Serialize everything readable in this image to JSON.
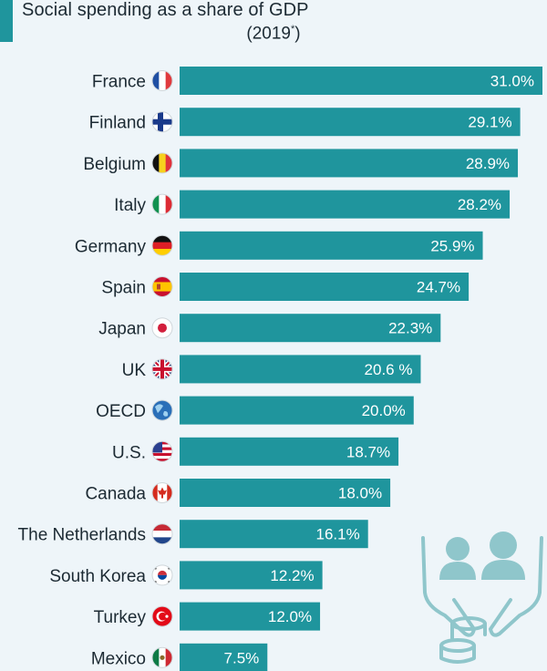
{
  "header": {
    "title": "Social spending as a share of GDP",
    "subtitle": "(2019",
    "subtitle_sup": "*",
    "subtitle_end": ")"
  },
  "colors": {
    "bar": "#1f959d",
    "accent": "#1f959d",
    "decoration": "#8fc6cb"
  },
  "chart_data": {
    "type": "bar",
    "orientation": "horizontal",
    "title": "Social spending as a share of GDP",
    "subtitle": "(2019*)",
    "xlim": [
      0,
      31
    ],
    "unit": "%",
    "categories": [
      "France",
      "Finland",
      "Belgium",
      "Italy",
      "Germany",
      "Spain",
      "Japan",
      "UK",
      "OECD",
      "U.S.",
      "Canada",
      "The Netherlands",
      "South Korea",
      "Turkey",
      "Mexico"
    ],
    "values": [
      31.0,
      29.1,
      28.9,
      28.2,
      25.9,
      24.7,
      22.3,
      20.6,
      20.0,
      18.7,
      18.0,
      16.1,
      12.2,
      12.0,
      7.5
    ],
    "value_labels": [
      "31.0%",
      "29.1%",
      "28.9%",
      "28.2%",
      "25.9%",
      "24.7%",
      "22.3%",
      "20.6 %",
      "20.0%",
      "18.7%",
      "18.0%",
      "16.1%",
      "12.2%",
      "12.0%",
      "7.5%"
    ],
    "flag_icons": [
      "france-flag-icon",
      "finland-flag-icon",
      "belgium-flag-icon",
      "italy-flag-icon",
      "germany-flag-icon",
      "spain-flag-icon",
      "japan-flag-icon",
      "uk-flag-icon",
      "globe-icon",
      "us-flag-icon",
      "canada-flag-icon",
      "netherlands-flag-icon",
      "south-korea-flag-icon",
      "turkey-flag-icon",
      "mexico-flag-icon"
    ],
    "grid": false,
    "legend": "none"
  }
}
